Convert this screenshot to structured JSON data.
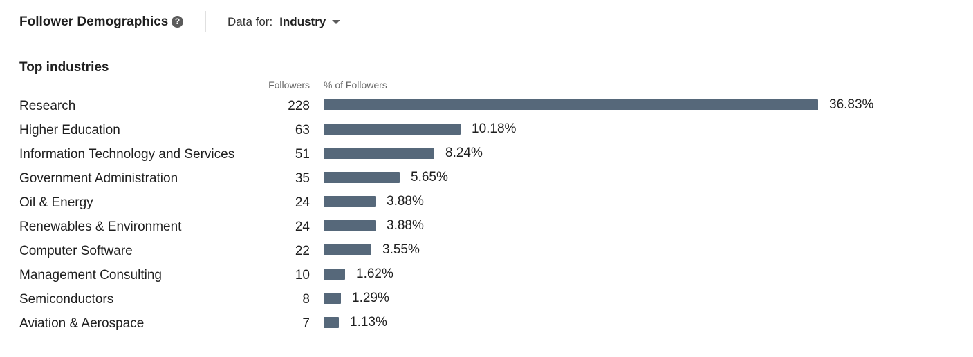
{
  "header": {
    "title": "Follower Demographics",
    "filter_label": "Data for:",
    "filter_value": "Industry"
  },
  "section": {
    "title": "Top industries",
    "col_followers": "Followers",
    "col_percent": "% of Followers"
  },
  "colors": {
    "bar": "#56687a"
  },
  "chart_data": {
    "type": "bar",
    "orientation": "horizontal",
    "xlim": [
      0,
      36.83
    ],
    "rows": [
      {
        "label": "Research",
        "followers": "228",
        "percent_value": 36.83,
        "percent_text": "36.83%"
      },
      {
        "label": "Higher Education",
        "followers": "63",
        "percent_value": 10.18,
        "percent_text": "10.18%"
      },
      {
        "label": "Information Technology and Services",
        "followers": "51",
        "percent_value": 8.24,
        "percent_text": "8.24%"
      },
      {
        "label": "Government Administration",
        "followers": "35",
        "percent_value": 5.65,
        "percent_text": "5.65%"
      },
      {
        "label": "Oil & Energy",
        "followers": "24",
        "percent_value": 3.88,
        "percent_text": "3.88%"
      },
      {
        "label": "Renewables & Environment",
        "followers": "24",
        "percent_value": 3.88,
        "percent_text": "3.88%"
      },
      {
        "label": "Computer Software",
        "followers": "22",
        "percent_value": 3.55,
        "percent_text": "3.55%"
      },
      {
        "label": "Management Consulting",
        "followers": "10",
        "percent_value": 1.62,
        "percent_text": "1.62%"
      },
      {
        "label": "Semiconductors",
        "followers": "8",
        "percent_value": 1.29,
        "percent_text": "1.29%"
      },
      {
        "label": "Aviation & Aerospace",
        "followers": "7",
        "percent_value": 1.13,
        "percent_text": "1.13%"
      }
    ]
  }
}
